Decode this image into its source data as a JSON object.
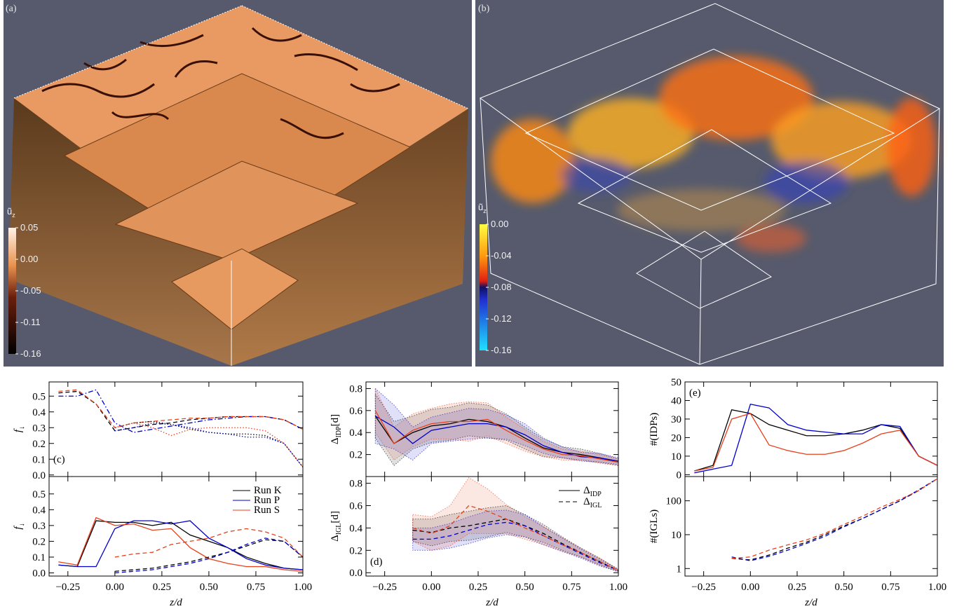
{
  "panels": [
    {
      "label": "(a)",
      "colorbar_title": {
        "main": "ũ",
        "sub": "z"
      },
      "colorbar_ticks": [
        "0.05",
        "0.00",
        "-0.05",
        "-0.11",
        "-0.16"
      ]
    },
    {
      "label": "(b)",
      "colorbar_title": {
        "main": "ũ",
        "sub": "z"
      },
      "colorbar_ticks": [
        "0.00",
        "-0.04",
        "-0.08",
        "-0.12",
        "-0.16"
      ]
    }
  ],
  "chart_data": [
    {
      "type": "line",
      "panel_label": "(c)",
      "ylabel": {
        "main": "f",
        "sub": "↓"
      },
      "x": [
        -0.3,
        -0.2,
        -0.1,
        0,
        0.1,
        0.2,
        0.3,
        0.4,
        0.5,
        0.6,
        0.7,
        0.8,
        0.9,
        1.0
      ],
      "xlim": [
        -0.35,
        1.0
      ],
      "xticks": [
        -0.25,
        0,
        0.25,
        0.5,
        0.75,
        1
      ],
      "ylim": [
        -0.01,
        0.59
      ],
      "yticks": [
        {
          "value": 0,
          "label": "0.0"
        },
        0.1,
        0.2,
        0.3,
        0.4,
        0.5
      ],
      "series": [
        {
          "color": "#000000",
          "dash": "dashed",
          "values": [
            0.52,
            0.53,
            0.45,
            0.28,
            0.3,
            0.32,
            0.33,
            0.35,
            0.36,
            0.37,
            0.37,
            0.37,
            0.35,
            0.29
          ]
        },
        {
          "color": "#0000cc",
          "dash": "dashdot",
          "values": [
            0.5,
            0.5,
            0.54,
            0.33,
            0.27,
            0.29,
            0.31,
            0.33,
            0.35,
            0.36,
            0.37,
            0.37,
            0.35,
            0.29
          ]
        },
        {
          "color": "#e8401c",
          "dash": "dashed",
          "values": [
            0.53,
            0.54,
            0.45,
            0.3,
            0.33,
            0.34,
            0.35,
            0.36,
            0.36,
            0.37,
            0.37,
            0.37,
            0.35,
            0.29
          ]
        },
        {
          "color": "#000000",
          "dash": "dotted",
          "values": [
            null,
            null,
            null,
            0.3,
            0.33,
            0.34,
            0.32,
            0.29,
            0.27,
            0.26,
            0.26,
            0.25,
            0.2,
            0.05
          ]
        },
        {
          "color": "#0000cc",
          "dash": "dotted",
          "values": [
            null,
            null,
            null,
            0.28,
            0.3,
            0.33,
            0.32,
            0.3,
            0.27,
            0.26,
            0.24,
            0.24,
            0.2,
            0.05
          ]
        },
        {
          "color": "#e8401c",
          "dash": "dotted",
          "values": [
            null,
            null,
            null,
            0.3,
            0.33,
            0.3,
            0.25,
            0.29,
            0.3,
            0.3,
            0.3,
            0.28,
            0.2,
            0.05
          ]
        }
      ]
    },
    {
      "type": "line",
      "ylabel": {
        "main": "f",
        "sub": "↓"
      },
      "xlabel": "z/d",
      "legend": "upper right",
      "x": [
        -0.3,
        -0.2,
        -0.1,
        0,
        0.1,
        0.2,
        0.3,
        0.4,
        0.5,
        0.6,
        0.7,
        0.8,
        0.9,
        1.0
      ],
      "xlim": [
        -0.35,
        1.0
      ],
      "xticks": [
        {
          "value": -0.25,
          "label": "−0.25"
        },
        {
          "value": 0,
          "label": "0.00"
        },
        0.25,
        {
          "value": 0.5,
          "label": "0.50"
        },
        0.75,
        {
          "value": 1,
          "label": "1.00"
        }
      ],
      "ylim": [
        -0.02,
        0.61
      ],
      "yticks": [
        {
          "value": 0,
          "label": "0.0"
        },
        0.1,
        0.2,
        0.3,
        0.4,
        0.5
      ],
      "series": [
        {
          "name": "Run K",
          "color": "#000000",
          "dash": "solid",
          "values": [
            0.05,
            0.04,
            0.33,
            0.32,
            0.32,
            0.3,
            0.32,
            0.24,
            0.2,
            0.16,
            0.1,
            0.06,
            0.03,
            0.02
          ]
        },
        {
          "name": "Run P",
          "color": "#0000cc",
          "dash": "solid",
          "values": [
            0.05,
            0.04,
            0.04,
            0.28,
            0.33,
            0.33,
            0.31,
            0.33,
            0.22,
            0.16,
            0.09,
            0.05,
            0.03,
            0.02
          ]
        },
        {
          "name": "Run S",
          "color": "#e8401c",
          "dash": "solid",
          "values": [
            0.07,
            0.05,
            0.35,
            0.3,
            0.31,
            0.27,
            0.28,
            0.16,
            0.09,
            0.06,
            0.04,
            0.04,
            0.02,
            0.01
          ]
        },
        {
          "color": "#000000",
          "dash": "dashed",
          "values": [
            null,
            null,
            null,
            0.01,
            0.02,
            0.03,
            0.05,
            0.07,
            0.1,
            0.13,
            0.17,
            0.21,
            0.2,
            0.1
          ]
        },
        {
          "color": "#0000cc",
          "dash": "dashed",
          "values": [
            null,
            null,
            null,
            0.0,
            0.01,
            0.02,
            0.04,
            0.06,
            0.09,
            0.13,
            0.18,
            0.22,
            0.2,
            0.1
          ]
        },
        {
          "color": "#e8401c",
          "dash": "dashed",
          "values": [
            null,
            null,
            null,
            0.1,
            0.12,
            0.13,
            0.18,
            0.2,
            0.22,
            0.26,
            0.28,
            0.26,
            0.22,
            0.1
          ]
        }
      ]
    },
    {
      "type": "line",
      "ylabel": {
        "main": "Δ",
        "sub": "IDP",
        "tail": "[d]"
      },
      "x": [
        -0.3,
        -0.2,
        -0.1,
        0,
        0.1,
        0.2,
        0.3,
        0.4,
        0.5,
        0.6,
        0.7,
        0.8,
        0.9,
        1.0
      ],
      "xlim": [
        -0.35,
        1.0
      ],
      "xticks": [
        -0.25,
        0,
        0.25,
        0.5,
        0.75,
        1
      ],
      "ylim": [
        0,
        0.86
      ],
      "yticks": [
        0.2,
        0.4,
        0.6,
        0.8
      ],
      "series": [
        {
          "color": "#000000",
          "dash": "solid",
          "values": [
            0.55,
            0.3,
            0.4,
            0.46,
            0.48,
            0.52,
            0.5,
            0.45,
            0.35,
            0.26,
            0.22,
            0.2,
            0.17,
            0.13
          ],
          "err": [
            0.2,
            0.2,
            0.15,
            0.15,
            0.15,
            0.15,
            0.15,
            0.12,
            0.1,
            0.08,
            0.05,
            0.05,
            0.04,
            0.03
          ]
        },
        {
          "color": "#0000cc",
          "dash": "solid",
          "values": [
            0.55,
            0.45,
            0.3,
            0.42,
            0.45,
            0.48,
            0.48,
            0.45,
            0.38,
            0.28,
            0.22,
            0.18,
            0.17,
            0.14
          ],
          "err": [
            0.25,
            0.2,
            0.15,
            0.12,
            0.13,
            0.14,
            0.13,
            0.11,
            0.1,
            0.07,
            0.05,
            0.04,
            0.04,
            0.03
          ]
        },
        {
          "color": "#e8401c",
          "dash": "solid",
          "values": [
            0.6,
            0.3,
            0.42,
            0.48,
            0.5,
            0.5,
            0.52,
            0.42,
            0.33,
            0.25,
            0.2,
            0.19,
            0.16,
            0.13
          ],
          "err": [
            0.2,
            0.15,
            0.15,
            0.14,
            0.16,
            0.18,
            0.15,
            0.12,
            0.1,
            0.07,
            0.05,
            0.04,
            0.04,
            0.03
          ]
        }
      ]
    },
    {
      "type": "line",
      "panel_label": "(d)",
      "ylabel": {
        "main": "Δ",
        "sub": "IGL",
        "tail": "[d]"
      },
      "xlabel": "z/d",
      "legend_items": [
        {
          "main": "Δ",
          "sub": "IDP",
          "dash": "solid"
        },
        {
          "main": "Δ",
          "sub": "IGL",
          "dash": "dashed"
        }
      ],
      "x": [
        -0.3,
        -0.2,
        -0.1,
        0,
        0.1,
        0.2,
        0.3,
        0.4,
        0.5,
        0.6,
        0.7,
        0.8,
        0.9,
        1.0
      ],
      "xlim": [
        -0.35,
        1.0
      ],
      "xticks": [
        {
          "value": -0.25,
          "label": "−0.25"
        },
        {
          "value": 0,
          "label": "0.00"
        },
        0.25,
        {
          "value": 0.5,
          "label": "0.50"
        },
        0.75,
        {
          "value": 1,
          "label": "1.00"
        }
      ],
      "ylim": [
        -0.03,
        0.86
      ],
      "yticks": [
        {
          "value": 0,
          "label": "0.0"
        },
        0.2,
        0.4,
        0.6,
        0.8
      ],
      "series": [
        {
          "color": "#000000",
          "dash": "dashed",
          "values": [
            null,
            null,
            0.38,
            0.36,
            0.4,
            0.42,
            0.45,
            0.48,
            0.42,
            0.35,
            0.26,
            0.18,
            0.1,
            0.02
          ],
          "err": [
            null,
            null,
            0.1,
            0.12,
            0.12,
            0.13,
            0.13,
            0.12,
            0.1,
            0.08,
            0.06,
            0.04,
            0.03,
            0.01
          ]
        },
        {
          "color": "#0000cc",
          "dash": "dashed",
          "values": [
            null,
            null,
            0.3,
            0.3,
            0.33,
            0.38,
            0.43,
            0.45,
            0.42,
            0.33,
            0.25,
            0.17,
            0.09,
            0.02
          ],
          "err": [
            null,
            null,
            0.1,
            0.1,
            0.11,
            0.12,
            0.12,
            0.11,
            0.1,
            0.08,
            0.06,
            0.04,
            0.03,
            0.01
          ]
        },
        {
          "color": "#e8401c",
          "dash": "dashed",
          "values": [
            null,
            null,
            0.4,
            0.35,
            0.42,
            0.6,
            0.55,
            0.48,
            0.4,
            0.33,
            0.25,
            0.18,
            0.1,
            0.02
          ],
          "err": [
            null,
            null,
            0.12,
            0.15,
            0.18,
            0.25,
            0.2,
            0.13,
            0.1,
            0.08,
            0.06,
            0.04,
            0.03,
            0.01
          ]
        }
      ]
    },
    {
      "type": "line",
      "panel_label": "(e)",
      "ylabel": {
        "main": "#(IDPs)"
      },
      "x": [
        -0.3,
        -0.2,
        -0.1,
        0,
        0.1,
        0.2,
        0.3,
        0.4,
        0.5,
        0.6,
        0.7,
        0.8,
        0.9,
        1.0
      ],
      "xlim": [
        -0.35,
        1.0
      ],
      "xticks": [
        -0.25,
        0,
        0.25,
        0.5,
        0.75,
        1
      ],
      "ylim": [
        -1,
        50
      ],
      "yticks": [
        0,
        10,
        20,
        30,
        40,
        50
      ],
      "series": [
        {
          "color": "#000000",
          "dash": "solid",
          "values": [
            2,
            5,
            35,
            33,
            27,
            24,
            21,
            21,
            22,
            24,
            27,
            25,
            10,
            5
          ]
        },
        {
          "color": "#0000cc",
          "dash": "solid",
          "values": [
            1,
            3,
            5,
            38,
            36,
            27,
            24,
            23,
            22,
            22,
            27,
            26,
            10,
            5
          ]
        },
        {
          "color": "#e8401c",
          "dash": "solid",
          "values": [
            2,
            4,
            30,
            33,
            16,
            13,
            11,
            11,
            13,
            17,
            22,
            24,
            10,
            5
          ]
        }
      ]
    },
    {
      "type": "line",
      "ylabel": {
        "main": "#(IGLs)"
      },
      "xlabel": "z/d",
      "log_y": true,
      "x": [
        -0.3,
        -0.2,
        -0.1,
        0,
        0.1,
        0.2,
        0.3,
        0.4,
        0.5,
        0.6,
        0.7,
        0.8,
        0.9,
        1.0
      ],
      "xlim": [
        -0.35,
        1.0
      ],
      "xticks": [
        {
          "value": -0.25,
          "label": "−0.25"
        },
        {
          "value": 0,
          "label": "0.00"
        },
        0.25,
        {
          "value": 0.5,
          "label": "0.50"
        },
        0.75,
        {
          "value": 1,
          "label": "1.00"
        }
      ],
      "ylim": [
        0.6,
        520
      ],
      "yticks": [
        1,
        10,
        100
      ],
      "series": [
        {
          "color": "#000000",
          "dash": "dashed",
          "values": [
            null,
            null,
            2,
            1.8,
            2.5,
            4,
            6,
            10,
            18,
            30,
            55,
            100,
            200,
            450
          ]
        },
        {
          "color": "#0000cc",
          "dash": "dashed",
          "values": [
            null,
            null,
            2.2,
            1.7,
            2.3,
            3.5,
            5.5,
            9,
            17,
            30,
            55,
            100,
            210,
            450
          ]
        },
        {
          "color": "#e8401c",
          "dash": "dashed",
          "values": [
            null,
            null,
            2,
            2.2,
            3.5,
            5,
            7,
            11,
            20,
            35,
            65,
            110,
            200,
            450
          ]
        }
      ]
    }
  ]
}
